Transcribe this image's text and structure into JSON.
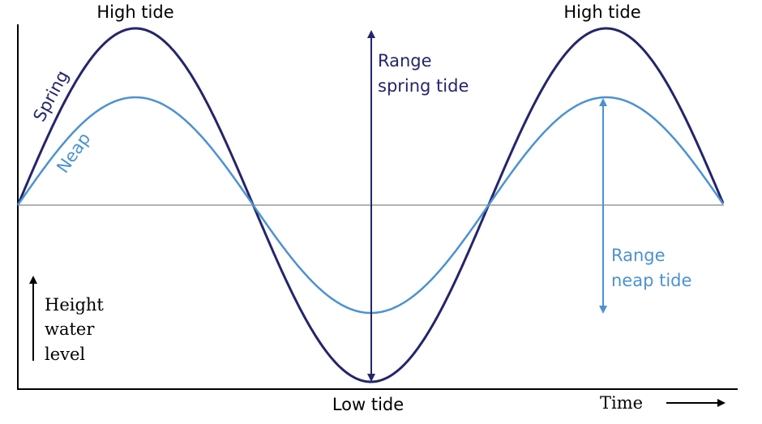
{
  "labels": {
    "high_tide_left": "High tide",
    "high_tide_right": "High tide",
    "low_tide": "Low tide",
    "spring": "Spring",
    "neap": "Neap",
    "range_spring_line1": "Range",
    "range_spring_line2": "spring tide",
    "range_neap_line1": "Range",
    "range_neap_line2": "neap tide",
    "height_line1": "Height",
    "height_line2": "water",
    "height_line3": "level",
    "time": "Time"
  },
  "colors": {
    "spring": "#24256b",
    "neap": "#4b92d2",
    "axis": "#000000",
    "mean_line": "#999999"
  }
}
